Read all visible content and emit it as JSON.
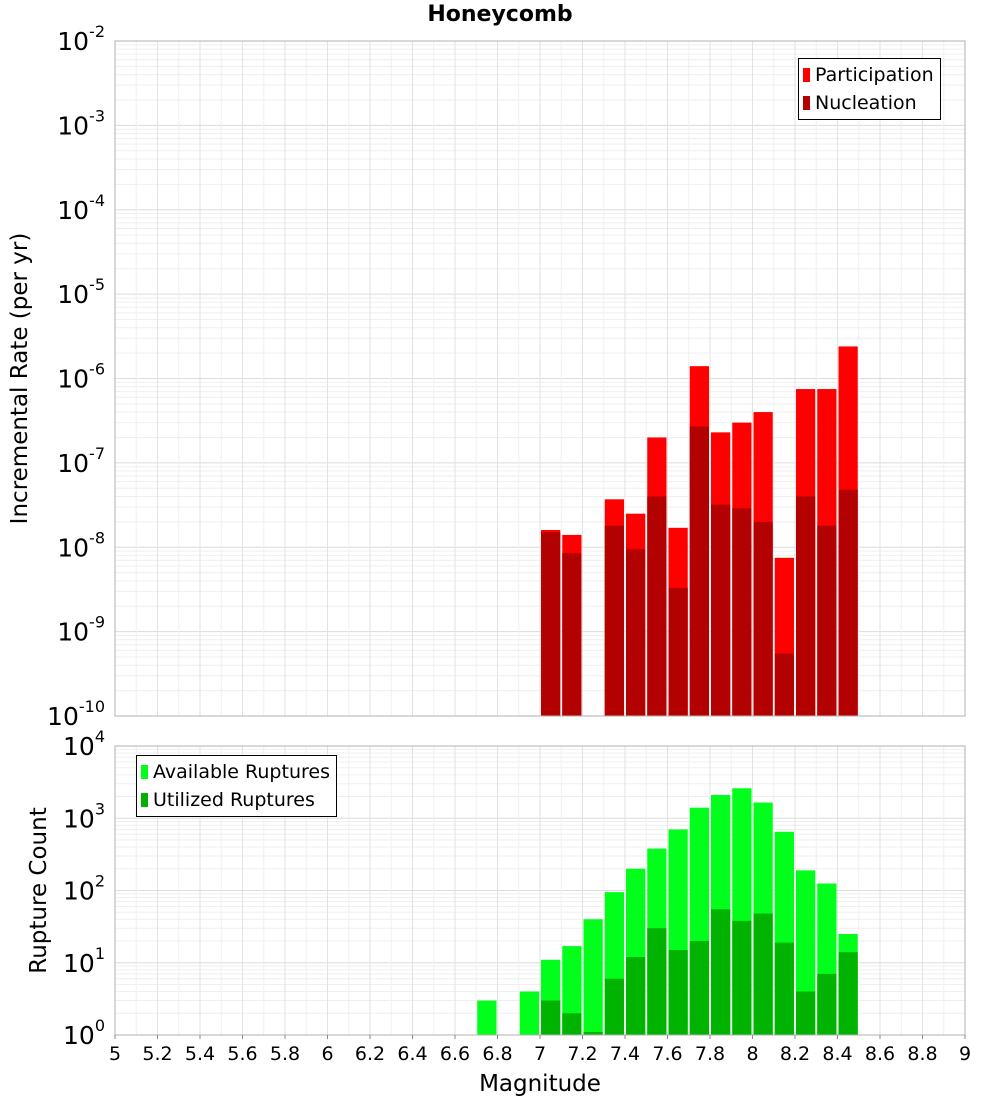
{
  "title": "Honeycomb",
  "colors": {
    "participation": "#ff0000",
    "nucleation": "#b30000",
    "available": "#00ff1a",
    "utilized": "#00b300",
    "grid": "#e6e6e6",
    "frame": "#b0b0b0"
  },
  "chart_data": [
    {
      "type": "bar",
      "panel": "top",
      "ylabel": "Incremental Rate (per yr)",
      "xlabel": "",
      "yscale": "log",
      "ylim": [
        1e-10,
        0.01
      ],
      "xlim": [
        5,
        9
      ],
      "y_ticks": [
        {
          "base": "10",
          "exp": "-10",
          "value": 1e-10
        },
        {
          "base": "10",
          "exp": "-9",
          "value": 1e-09
        },
        {
          "base": "10",
          "exp": "-8",
          "value": 1e-08
        },
        {
          "base": "10",
          "exp": "-7",
          "value": 1e-07
        },
        {
          "base": "10",
          "exp": "-6",
          "value": 1e-06
        },
        {
          "base": "10",
          "exp": "-5",
          "value": 1e-05
        },
        {
          "base": "10",
          "exp": "-4",
          "value": 0.0001
        },
        {
          "base": "10",
          "exp": "-3",
          "value": 0.001
        },
        {
          "base": "10",
          "exp": "-2",
          "value": 0.01
        }
      ],
      "legend_position": "top-right",
      "series": [
        {
          "name": "Participation",
          "x": [
            7.05,
            7.15,
            7.35,
            7.45,
            7.55,
            7.65,
            7.75,
            7.85,
            7.95,
            8.05,
            8.15,
            8.25,
            8.35,
            8.45
          ],
          "values": [
            1.6e-08,
            1.4e-08,
            3.7e-08,
            2.5e-08,
            2e-07,
            1.7e-08,
            1.4e-06,
            2.3e-07,
            3e-07,
            4e-07,
            7.5e-09,
            7.5e-07,
            7.5e-07,
            2.4e-06
          ]
        },
        {
          "name": "Nucleation",
          "x": [
            7.05,
            7.15,
            7.35,
            7.45,
            7.55,
            7.65,
            7.75,
            7.85,
            7.95,
            8.05,
            8.15,
            8.25,
            8.35,
            8.45
          ],
          "values": [
            1.5e-08,
            8.5e-09,
            1.8e-08,
            9.5e-09,
            4e-08,
            3.3e-09,
            2.7e-07,
            3.2e-08,
            2.9e-08,
            2e-08,
            5.5e-10,
            4e-08,
            1.8e-08,
            4.8e-08
          ]
        }
      ]
    },
    {
      "type": "bar",
      "panel": "bottom",
      "ylabel": "Rupture Count",
      "xlabel": "Magnitude",
      "yscale": "log",
      "ylim": [
        1,
        10000
      ],
      "xlim": [
        5,
        9
      ],
      "y_ticks": [
        {
          "base": "10",
          "exp": "0",
          "value": 1
        },
        {
          "base": "10",
          "exp": "1",
          "value": 10
        },
        {
          "base": "10",
          "exp": "2",
          "value": 100
        },
        {
          "base": "10",
          "exp": "3",
          "value": 1000
        },
        {
          "base": "10",
          "exp": "4",
          "value": 10000
        }
      ],
      "x_ticks": [
        "5",
        "5.2",
        "5.4",
        "5.6",
        "5.8",
        "6",
        "6.2",
        "6.4",
        "6.6",
        "6.8",
        "7",
        "7.2",
        "7.4",
        "7.6",
        "7.8",
        "8",
        "8.2",
        "8.4",
        "8.6",
        "8.8",
        "9"
      ],
      "legend_position": "top-left",
      "series": [
        {
          "name": "Available Ruptures",
          "x": [
            6.75,
            6.95,
            7.05,
            7.15,
            7.25,
            7.35,
            7.45,
            7.55,
            7.65,
            7.75,
            7.85,
            7.95,
            8.05,
            8.15,
            8.25,
            8.35,
            8.45
          ],
          "values": [
            3,
            4,
            11,
            17,
            40,
            95,
            200,
            380,
            700,
            1400,
            2100,
            2600,
            1650,
            650,
            190,
            125,
            25
          ]
        },
        {
          "name": "Utilized Ruptures",
          "x": [
            7.05,
            7.15,
            7.25,
            7.35,
            7.45,
            7.55,
            7.65,
            7.75,
            7.85,
            7.95,
            8.05,
            8.15,
            8.25,
            8.35,
            8.45
          ],
          "values": [
            3,
            2,
            1.1,
            6,
            12,
            30,
            15,
            20,
            55,
            38,
            48,
            19,
            4,
            7,
            14
          ]
        }
      ]
    }
  ]
}
